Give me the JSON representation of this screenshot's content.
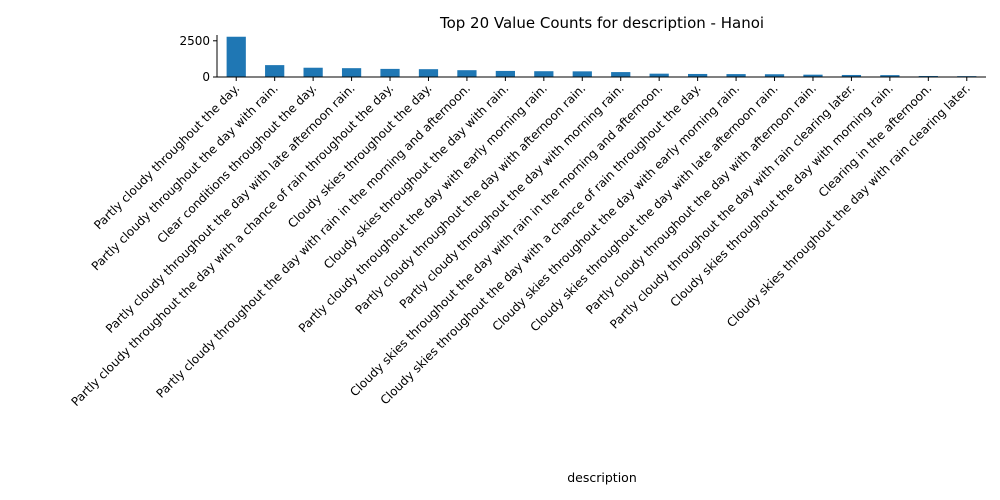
{
  "chart_data": {
    "type": "bar",
    "title": "Top 20 Value Counts for description - Hanoi",
    "xlabel": "description",
    "ylabel": "",
    "ylim": [
      0,
      2900
    ],
    "yticks": [
      0,
      2500
    ],
    "grid": false,
    "legend": "none",
    "bar_color": "#1f77b4",
    "categories": [
      "Partly cloudy throughout the day.",
      "Partly cloudy throughout the day with rain.",
      "Clear conditions throughout the day.",
      "Partly cloudy throughout the day with late afternoon rain.",
      "Partly cloudy throughout the day with a chance of rain throughout the day.",
      "Cloudy skies throughout the day.",
      "Partly cloudy throughout the day with rain in the morning and afternoon.",
      "Cloudy skies throughout the day with rain.",
      "Partly cloudy throughout the day with early morning rain.",
      "Partly cloudy throughout the day with afternoon rain.",
      "Partly cloudy throughout the day with morning rain.",
      "Cloudy skies throughout the day with rain in the morning and afternoon.",
      "Cloudy skies throughout the day with a chance of rain throughout the day.",
      "Cloudy skies throughout the day with early morning rain.",
      "Cloudy skies throughout the day with late afternoon rain.",
      "Partly cloudy throughout the day with afternoon rain.",
      "Partly cloudy throughout the day with rain clearing later.",
      "Cloudy skies throughout the day with morning rain.",
      "Clearing in the afternoon.",
      "Cloudy skies throughout the day with rain clearing later."
    ],
    "values": [
      2780,
      820,
      640,
      610,
      560,
      540,
      470,
      420,
      400,
      390,
      340,
      230,
      210,
      200,
      190,
      160,
      140,
      130,
      70,
      60
    ]
  }
}
